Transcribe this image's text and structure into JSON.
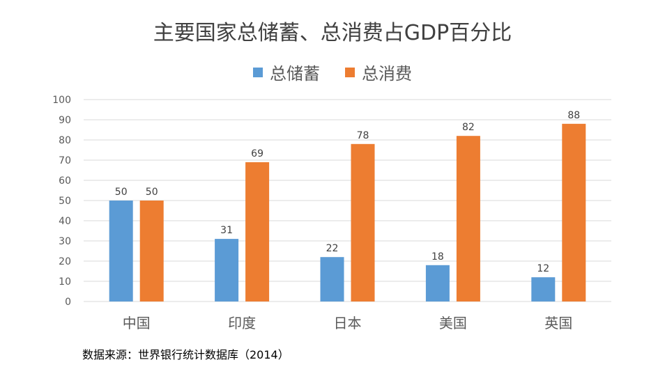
{
  "chart_data": {
    "type": "bar",
    "title": "主要国家总储蓄、总消费占GDP百分比",
    "categories": [
      "中国",
      "印度",
      "日本",
      "美国",
      "英国"
    ],
    "series": [
      {
        "name": "总储蓄",
        "values": [
          50,
          31,
          22,
          18,
          12
        ],
        "color": "#5b9bd5"
      },
      {
        "name": "总消费",
        "values": [
          50,
          69,
          78,
          82,
          88
        ],
        "color": "#ed7d31"
      }
    ],
    "ylim": [
      0,
      100
    ],
    "yticks": [
      0,
      10,
      20,
      30,
      40,
      50,
      60,
      70,
      80,
      90,
      100
    ],
    "grid": true,
    "legend_position": "top",
    "data_labels": true
  },
  "source_note": "数据来源：世界银行统计数据库（2014）"
}
